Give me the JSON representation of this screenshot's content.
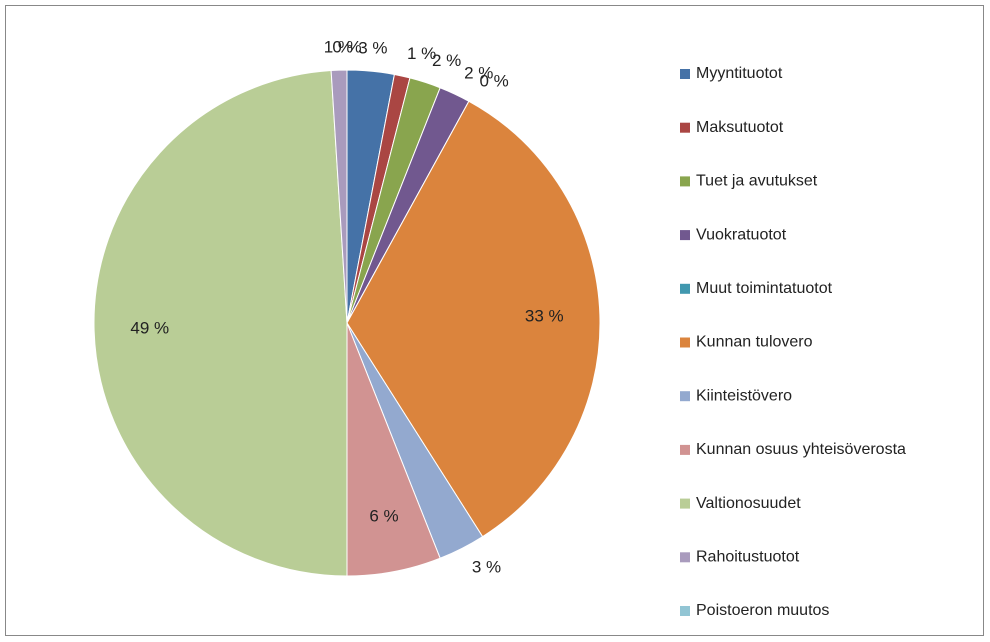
{
  "chart_data": {
    "type": "pie",
    "categories": [
      "Myyntituotot",
      "Maksutuotot",
      "Tuet ja avutukset",
      "Vuokratuotot",
      "Muut toimintatuotot",
      "Kunnan tulovero",
      "Kiinteistövero",
      "Kunnan osuus yhteisöverosta",
      "Valtionosuudet",
      "Rahoitustuotot",
      "Poistoeron muutos"
    ],
    "values": [
      3,
      1,
      2,
      2,
      0,
      33,
      3,
      6,
      49,
      1,
      0
    ],
    "value_labels": [
      "3 %",
      "1 %",
      "2 %",
      "2 %",
      "0 %",
      "33 %",
      "3 %",
      "6 %",
      "49 %",
      "1 %",
      "0 %"
    ],
    "colors": [
      "#4572a7",
      "#aa4643",
      "#89a54e",
      "#71588f",
      "#4198af",
      "#db843d",
      "#93a9cf",
      "#d19392",
      "#b9cd96",
      "#a99bbd",
      "#92c5d4"
    ],
    "legend": "right"
  }
}
